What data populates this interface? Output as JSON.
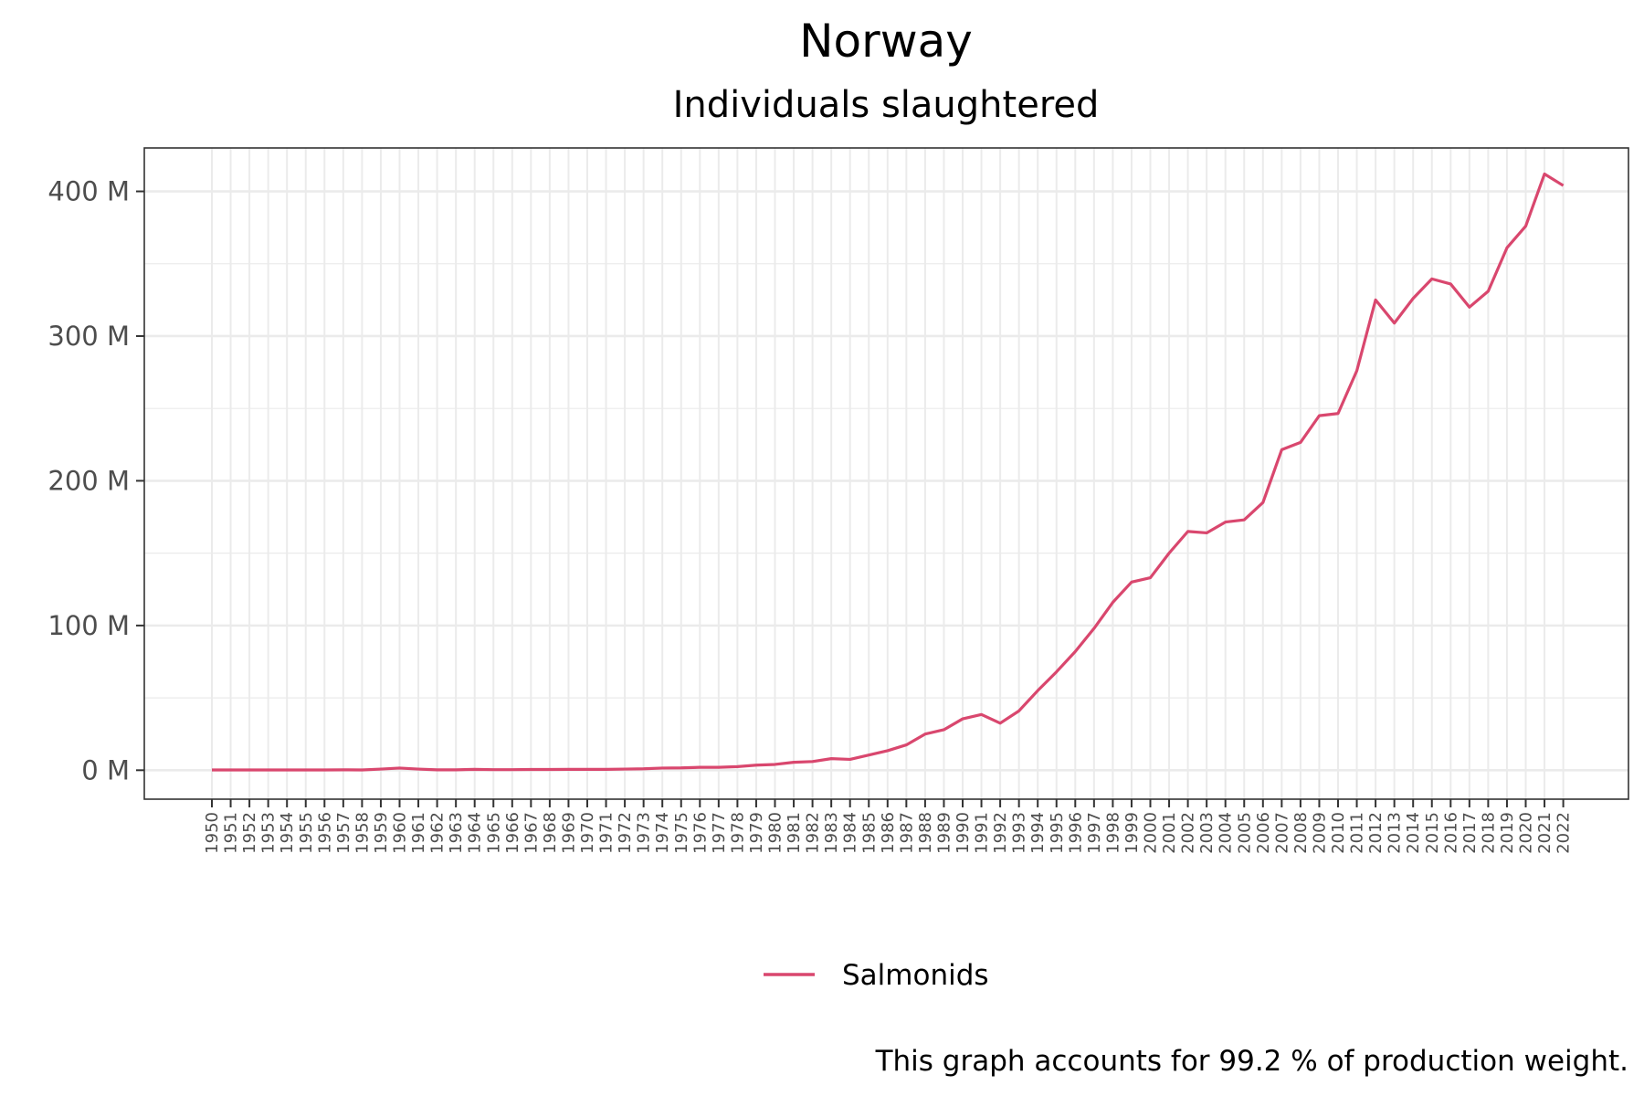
{
  "chart_data": {
    "type": "line",
    "title": "Norway",
    "subtitle": "Individuals slaughtered",
    "caption": "This graph accounts for 99.2 % of production weight.",
    "xlabel": "",
    "ylabel": "",
    "ylim": [
      -20,
      430
    ],
    "y_ticks": [
      0,
      100,
      200,
      300,
      400
    ],
    "y_tick_labels": [
      "0 M",
      "100 M",
      "200 M",
      "300 M",
      "400 M"
    ],
    "y_unit": "M",
    "grid": true,
    "legend_position": "bottom",
    "x": [
      "1950",
      "1951",
      "1952",
      "1953",
      "1954",
      "1955",
      "1956",
      "1957",
      "1958",
      "1959",
      "1960",
      "1961",
      "1962",
      "1963",
      "1964",
      "1965",
      "1966",
      "1967",
      "1968",
      "1969",
      "1970",
      "1971",
      "1972",
      "1973",
      "1974",
      "1975",
      "1976",
      "1977",
      "1978",
      "1979",
      "1980",
      "1981",
      "1982",
      "1983",
      "1984",
      "1985",
      "1986",
      "1987",
      "1988",
      "1989",
      "1990",
      "1991",
      "1992",
      "1993",
      "1994",
      "1995",
      "1996",
      "1997",
      "1998",
      "1999",
      "2000",
      "2001",
      "2002",
      "2003",
      "2004",
      "2005",
      "2006",
      "2007",
      "2008",
      "2009",
      "2010",
      "2011",
      "2012",
      "2013",
      "2014",
      "2015",
      "2016",
      "2017",
      "2018",
      "2019",
      "2020",
      "2021",
      "2022"
    ],
    "series": [
      {
        "name": "Salmonids",
        "color": "#d9476e",
        "values": [
          0.2,
          0.2,
          0.2,
          0.2,
          0.2,
          0.2,
          0.2,
          0.3,
          0.2,
          0.8,
          1.5,
          0.8,
          0.3,
          0.3,
          0.6,
          0.4,
          0.4,
          0.5,
          0.5,
          0.6,
          0.6,
          0.6,
          0.8,
          1.0,
          1.5,
          1.6,
          2.0,
          2.0,
          2.5,
          3.5,
          4.0,
          5.5,
          6.0,
          8.0,
          7.5,
          10.5,
          13.5,
          17.5,
          25.0,
          28.0,
          35.5,
          38.5,
          32.5,
          41.0,
          55.0,
          68.0,
          82.0,
          98.0,
          116.0,
          130.0,
          133.0,
          150.0,
          165.0,
          164.0,
          171.5,
          173.0,
          185.0,
          221.5,
          226.5,
          245.0,
          246.5,
          276.0,
          325.0,
          309.0,
          326.0,
          339.5,
          336.0,
          320.0,
          331.0,
          361.0,
          376.0,
          412.0,
          404.0
        ]
      }
    ]
  }
}
